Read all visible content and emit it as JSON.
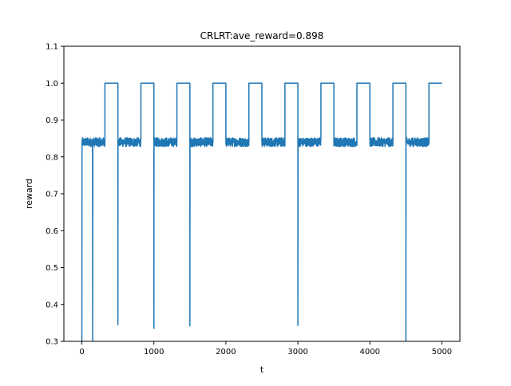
{
  "chart_data": {
    "type": "line",
    "title": "CRLRT:ave_reward=0.898",
    "xlabel": "t",
    "ylabel": "reward",
    "xlim": [
      -250,
      5250
    ],
    "ylim": [
      0.3,
      1.1
    ],
    "xticks": [
      0,
      1000,
      2000,
      3000,
      4000,
      5000
    ],
    "xtick_labels": [
      "0",
      "1000",
      "2000",
      "3000",
      "4000",
      "5000"
    ],
    "yticks": [
      0.3,
      0.4,
      0.5,
      0.6,
      0.7,
      0.8,
      0.9,
      1.0,
      1.1
    ],
    "ytick_labels": [
      "0.3",
      "0.4",
      "0.5",
      "0.6",
      "0.7",
      "0.8",
      "0.9",
      "1.0",
      "1.1"
    ],
    "grid": false,
    "line_color": "#1f77b4",
    "series": [
      {
        "segments": [
          {
            "type": "noise",
            "x_start": 0,
            "x_end": 320,
            "mean": 0.84,
            "amplitude": 0.012
          },
          {
            "type": "flat",
            "x_start": 320,
            "x_end": 500,
            "y": 1.0
          },
          {
            "type": "noise",
            "x_start": 500,
            "x_end": 820,
            "mean": 0.84,
            "amplitude": 0.012
          },
          {
            "type": "flat",
            "x_start": 820,
            "x_end": 1000,
            "y": 1.0
          },
          {
            "type": "noise",
            "x_start": 1000,
            "x_end": 1320,
            "mean": 0.84,
            "amplitude": 0.012
          },
          {
            "type": "flat",
            "x_start": 1320,
            "x_end": 1500,
            "y": 1.0
          },
          {
            "type": "noise",
            "x_start": 1500,
            "x_end": 1820,
            "mean": 0.84,
            "amplitude": 0.012
          },
          {
            "type": "flat",
            "x_start": 1820,
            "x_end": 2000,
            "y": 1.0
          },
          {
            "type": "noise",
            "x_start": 2000,
            "x_end": 2320,
            "mean": 0.84,
            "amplitude": 0.012
          },
          {
            "type": "flat",
            "x_start": 2320,
            "x_end": 2500,
            "y": 1.0
          },
          {
            "type": "noise",
            "x_start": 2500,
            "x_end": 2820,
            "mean": 0.84,
            "amplitude": 0.012
          },
          {
            "type": "flat",
            "x_start": 2820,
            "x_end": 3000,
            "y": 1.0
          },
          {
            "type": "noise",
            "x_start": 3000,
            "x_end": 3320,
            "mean": 0.84,
            "amplitude": 0.012
          },
          {
            "type": "flat",
            "x_start": 3320,
            "x_end": 3500,
            "y": 1.0
          },
          {
            "type": "noise",
            "x_start": 3500,
            "x_end": 3820,
            "mean": 0.84,
            "amplitude": 0.012
          },
          {
            "type": "flat",
            "x_start": 3820,
            "x_end": 4000,
            "y": 1.0
          },
          {
            "type": "noise",
            "x_start": 4000,
            "x_end": 4320,
            "mean": 0.84,
            "amplitude": 0.012
          },
          {
            "type": "flat",
            "x_start": 4320,
            "x_end": 4500,
            "y": 1.0
          },
          {
            "type": "noise",
            "x_start": 4500,
            "x_end": 4820,
            "mean": 0.84,
            "amplitude": 0.012
          },
          {
            "type": "flat",
            "x_start": 4820,
            "x_end": 5000,
            "y": 1.0
          }
        ],
        "dips": [
          {
            "x": 0,
            "y": 0.3
          },
          {
            "x": 150,
            "y": 0.3
          },
          {
            "x": 500,
            "y": 0.345
          },
          {
            "x": 1000,
            "y": 0.335
          },
          {
            "x": 1500,
            "y": 0.342
          },
          {
            "x": 3000,
            "y": 0.343
          },
          {
            "x": 4500,
            "y": 0.3
          }
        ]
      }
    ]
  }
}
